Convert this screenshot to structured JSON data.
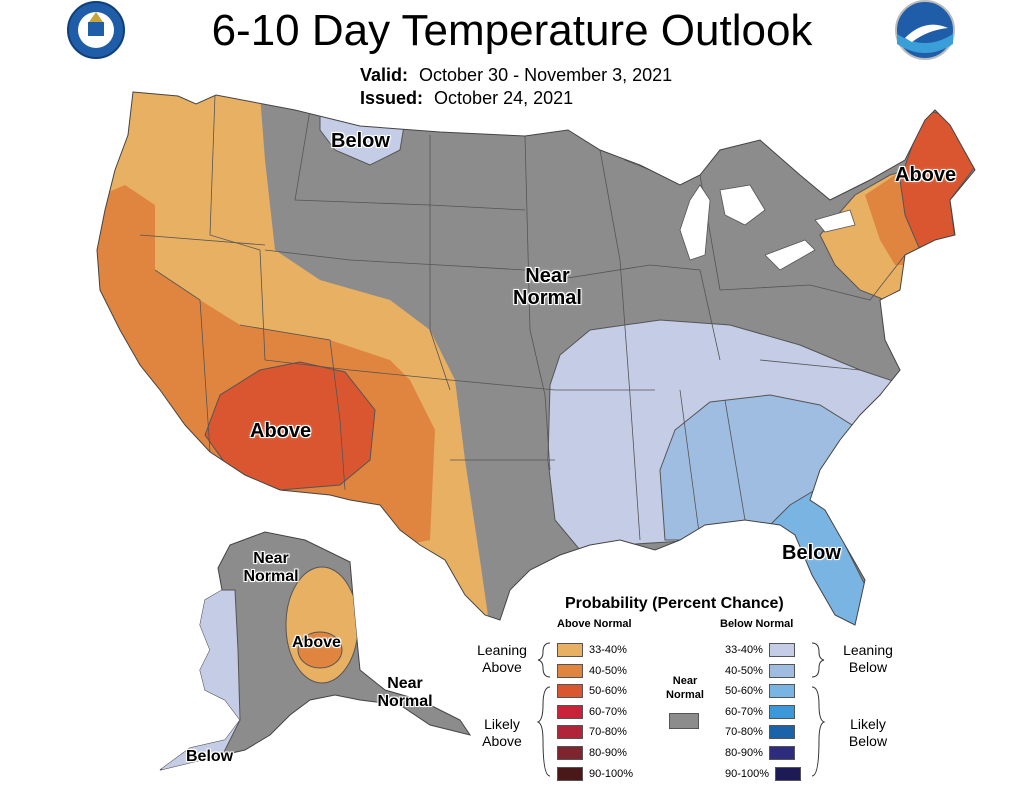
{
  "header": {
    "title": "6-10 Day Temperature Outlook",
    "valid_label": "Valid:",
    "valid_value": "October 30 - November 3, 2021",
    "issued_label": "Issued:",
    "issued_value": "October 24, 2021"
  },
  "logos": {
    "left": "doc-seal-logo",
    "right": "noaa-logo"
  },
  "map_labels": {
    "below_north": "Below",
    "above_northeast": "Above",
    "near_normal_central": "Near Normal",
    "above_southwest": "Above",
    "below_florida": "Below",
    "near_normal_alaska": "Near Normal",
    "above_alaska": "Above",
    "near_normal_panhandle": "Near Normal",
    "below_alaska": "Below"
  },
  "legend": {
    "title": "Probability (Percent Chance)",
    "above_header": "Above Normal",
    "below_header": "Below Normal",
    "leaning_above": "Leaning Above",
    "likely_above": "Likely Above",
    "leaning_below": "Leaning Below",
    "likely_below": "Likely Below",
    "near_normal": "Near Normal",
    "near_normal_color": "#8c8c8c",
    "above": [
      {
        "range": "33-40%",
        "color": "#e8b063"
      },
      {
        "range": "40-50%",
        "color": "#e0853f"
      },
      {
        "range": "50-60%",
        "color": "#d95630"
      },
      {
        "range": "60-70%",
        "color": "#c9233a"
      },
      {
        "range": "70-80%",
        "color": "#b0253a"
      },
      {
        "range": "80-90%",
        "color": "#7e2530"
      },
      {
        "range": "90-100%",
        "color": "#4a1818"
      }
    ],
    "below": [
      {
        "range": "33-40%",
        "color": "#c4cce6"
      },
      {
        "range": "40-50%",
        "color": "#9fbde0"
      },
      {
        "range": "50-60%",
        "color": "#79b4e3"
      },
      {
        "range": "60-70%",
        "color": "#3c98d8"
      },
      {
        "range": "70-80%",
        "color": "#1b63a8"
      },
      {
        "range": "80-90%",
        "color": "#2e2c7e"
      },
      {
        "range": "90-100%",
        "color": "#1e1a55"
      }
    ]
  }
}
